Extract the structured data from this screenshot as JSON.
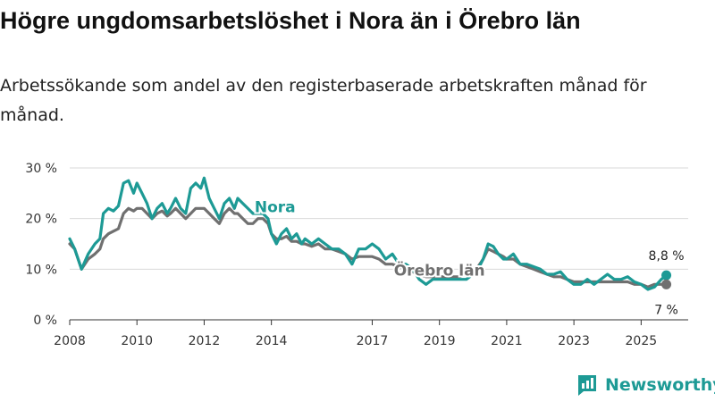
{
  "header": {
    "title": "Högre ungdomsarbetslöshet i Nora än i Örebro län",
    "subtitle": "Arbetssökande som andel av den registerbaserade arbetskraften månad för månad."
  },
  "brand": {
    "name": "Newsworthy"
  },
  "colors": {
    "nora": "#1d9a95",
    "orebro": "#707070",
    "grid": "#d9d9d9",
    "axis": "#333333"
  },
  "chart_data": {
    "type": "line",
    "title": "Högre ungdomsarbetslöshet i Nora än i Örebro län",
    "ylabel": "",
    "xlabel": "",
    "ylim": [
      0,
      30
    ],
    "xlim": [
      2008,
      2026.4
    ],
    "yticks": [
      0,
      10,
      20,
      30
    ],
    "ytick_labels": [
      "0 %",
      "10 %",
      "20 %",
      "30 %"
    ],
    "xticks": [
      2008,
      2010,
      2012,
      2014,
      2017,
      2019,
      2021,
      2023,
      2025
    ],
    "xtick_labels": [
      "2008",
      "2010",
      "2012",
      "2014",
      "2017",
      "2019",
      "2021",
      "2023",
      "2025"
    ],
    "series": [
      {
        "name": "Nora",
        "key": "nora",
        "end_label": "8,8 %",
        "points": [
          [
            2008.0,
            16
          ],
          [
            2008.15,
            14
          ],
          [
            2008.35,
            10
          ],
          [
            2008.55,
            13
          ],
          [
            2008.75,
            15
          ],
          [
            2008.9,
            16
          ],
          [
            2009.0,
            21
          ],
          [
            2009.15,
            22
          ],
          [
            2009.3,
            21.5
          ],
          [
            2009.45,
            22.5
          ],
          [
            2009.6,
            27
          ],
          [
            2009.75,
            27.5
          ],
          [
            2009.9,
            25
          ],
          [
            2010.0,
            27
          ],
          [
            2010.15,
            25
          ],
          [
            2010.3,
            23
          ],
          [
            2010.45,
            20
          ],
          [
            2010.6,
            22
          ],
          [
            2010.75,
            23
          ],
          [
            2010.9,
            21
          ],
          [
            2011.0,
            22
          ],
          [
            2011.15,
            24
          ],
          [
            2011.3,
            22
          ],
          [
            2011.45,
            21
          ],
          [
            2011.6,
            26
          ],
          [
            2011.75,
            27
          ],
          [
            2011.9,
            26
          ],
          [
            2012.0,
            28
          ],
          [
            2012.15,
            24
          ],
          [
            2012.3,
            22
          ],
          [
            2012.45,
            20
          ],
          [
            2012.6,
            23
          ],
          [
            2012.75,
            24
          ],
          [
            2012.9,
            22
          ],
          [
            2013.0,
            24
          ],
          [
            2013.15,
            23
          ],
          [
            2013.3,
            22
          ],
          [
            2013.45,
            21
          ],
          [
            2013.6,
            21
          ],
          [
            2013.75,
            21
          ],
          [
            2013.9,
            20
          ],
          [
            2014.0,
            17
          ],
          [
            2014.15,
            15
          ],
          [
            2014.3,
            17
          ],
          [
            2014.45,
            18
          ],
          [
            2014.6,
            16
          ],
          [
            2014.75,
            17
          ],
          [
            2014.9,
            15
          ],
          [
            2015.0,
            16
          ],
          [
            2015.2,
            15
          ],
          [
            2015.4,
            16
          ],
          [
            2015.6,
            15
          ],
          [
            2015.8,
            14
          ],
          [
            2016.0,
            14
          ],
          [
            2016.2,
            13
          ],
          [
            2016.4,
            11
          ],
          [
            2016.6,
            14
          ],
          [
            2016.8,
            14
          ],
          [
            2017.0,
            15
          ],
          [
            2017.2,
            14
          ],
          [
            2017.4,
            12
          ],
          [
            2017.6,
            13
          ],
          [
            2017.8,
            11
          ],
          [
            2018.0,
            11
          ],
          [
            2018.2,
            10
          ],
          [
            2018.4,
            8
          ],
          [
            2018.6,
            7
          ],
          [
            2018.8,
            8
          ],
          [
            2019.0,
            8
          ],
          [
            2019.2,
            8
          ],
          [
            2019.4,
            8
          ],
          [
            2019.6,
            8
          ],
          [
            2019.8,
            8
          ],
          [
            2020.0,
            9
          ],
          [
            2020.15,
            10
          ],
          [
            2020.3,
            12
          ],
          [
            2020.45,
            15
          ],
          [
            2020.6,
            14.5
          ],
          [
            2020.75,
            13
          ],
          [
            2020.9,
            12
          ],
          [
            2021.0,
            12
          ],
          [
            2021.2,
            13
          ],
          [
            2021.4,
            11
          ],
          [
            2021.6,
            11
          ],
          [
            2021.8,
            10.5
          ],
          [
            2022.0,
            10
          ],
          [
            2022.2,
            9
          ],
          [
            2022.4,
            9
          ],
          [
            2022.6,
            9.5
          ],
          [
            2022.8,
            8
          ],
          [
            2023.0,
            7
          ],
          [
            2023.2,
            7
          ],
          [
            2023.4,
            8
          ],
          [
            2023.6,
            7
          ],
          [
            2023.8,
            8
          ],
          [
            2024.0,
            9
          ],
          [
            2024.2,
            8
          ],
          [
            2024.4,
            8
          ],
          [
            2024.6,
            8.5
          ],
          [
            2024.8,
            7.5
          ],
          [
            2025.0,
            7
          ],
          [
            2025.2,
            6
          ],
          [
            2025.4,
            6.5
          ],
          [
            2025.6,
            8
          ],
          [
            2025.75,
            8.8
          ]
        ]
      },
      {
        "name": "Örebro län",
        "key": "orebro",
        "end_label": "7 %",
        "points": [
          [
            2008.0,
            15
          ],
          [
            2008.15,
            14
          ],
          [
            2008.35,
            10
          ],
          [
            2008.55,
            12
          ],
          [
            2008.75,
            13
          ],
          [
            2008.9,
            14
          ],
          [
            2009.0,
            16
          ],
          [
            2009.15,
            17
          ],
          [
            2009.3,
            17.5
          ],
          [
            2009.45,
            18
          ],
          [
            2009.6,
            21
          ],
          [
            2009.75,
            22
          ],
          [
            2009.9,
            21.5
          ],
          [
            2010.0,
            22
          ],
          [
            2010.15,
            22
          ],
          [
            2010.3,
            21
          ],
          [
            2010.45,
            20
          ],
          [
            2010.6,
            21
          ],
          [
            2010.75,
            21.5
          ],
          [
            2010.9,
            20.5
          ],
          [
            2011.0,
            21
          ],
          [
            2011.15,
            22
          ],
          [
            2011.3,
            21
          ],
          [
            2011.45,
            20
          ],
          [
            2011.6,
            21
          ],
          [
            2011.75,
            22
          ],
          [
            2011.9,
            22
          ],
          [
            2012.0,
            22
          ],
          [
            2012.15,
            21
          ],
          [
            2012.3,
            20
          ],
          [
            2012.45,
            19
          ],
          [
            2012.6,
            21
          ],
          [
            2012.75,
            22
          ],
          [
            2012.9,
            21
          ],
          [
            2013.0,
            21
          ],
          [
            2013.15,
            20
          ],
          [
            2013.3,
            19
          ],
          [
            2013.45,
            19
          ],
          [
            2013.6,
            20
          ],
          [
            2013.75,
            20
          ],
          [
            2013.9,
            19
          ],
          [
            2014.0,
            17
          ],
          [
            2014.15,
            16
          ],
          [
            2014.3,
            16
          ],
          [
            2014.45,
            16.5
          ],
          [
            2014.6,
            15.5
          ],
          [
            2014.75,
            15.5
          ],
          [
            2014.9,
            15
          ],
          [
            2015.0,
            15
          ],
          [
            2015.2,
            14.5
          ],
          [
            2015.4,
            15
          ],
          [
            2015.6,
            14
          ],
          [
            2015.8,
            14
          ],
          [
            2016.0,
            13.5
          ],
          [
            2016.2,
            13
          ],
          [
            2016.4,
            12
          ],
          [
            2016.6,
            12.5
          ],
          [
            2016.8,
            12.5
          ],
          [
            2017.0,
            12.5
          ],
          [
            2017.2,
            12
          ],
          [
            2017.4,
            11
          ],
          [
            2017.6,
            11
          ],
          [
            2017.8,
            10.5
          ],
          [
            2018.0,
            10
          ],
          [
            2018.2,
            9.5
          ],
          [
            2018.4,
            9
          ],
          [
            2018.6,
            8.5
          ],
          [
            2018.8,
            8.5
          ],
          [
            2019.0,
            8.5
          ],
          [
            2019.2,
            8.5
          ],
          [
            2019.4,
            8.5
          ],
          [
            2019.6,
            8.5
          ],
          [
            2019.8,
            9
          ],
          [
            2020.0,
            9.5
          ],
          [
            2020.15,
            10.5
          ],
          [
            2020.3,
            12
          ],
          [
            2020.45,
            14
          ],
          [
            2020.6,
            13.5
          ],
          [
            2020.75,
            13
          ],
          [
            2020.9,
            12.5
          ],
          [
            2021.0,
            12
          ],
          [
            2021.2,
            12
          ],
          [
            2021.4,
            11
          ],
          [
            2021.6,
            10.5
          ],
          [
            2021.8,
            10
          ],
          [
            2022.0,
            9.5
          ],
          [
            2022.2,
            9
          ],
          [
            2022.4,
            8.5
          ],
          [
            2022.6,
            8.5
          ],
          [
            2022.8,
            8
          ],
          [
            2023.0,
            7.5
          ],
          [
            2023.2,
            7.5
          ],
          [
            2023.4,
            7.5
          ],
          [
            2023.6,
            7.5
          ],
          [
            2023.8,
            7.5
          ],
          [
            2024.0,
            7.5
          ],
          [
            2024.2,
            7.5
          ],
          [
            2024.4,
            7.5
          ],
          [
            2024.6,
            7.5
          ],
          [
            2024.8,
            7
          ],
          [
            2025.0,
            7
          ],
          [
            2025.2,
            6.5
          ],
          [
            2025.4,
            7
          ],
          [
            2025.6,
            7
          ],
          [
            2025.75,
            7
          ]
        ]
      }
    ]
  }
}
